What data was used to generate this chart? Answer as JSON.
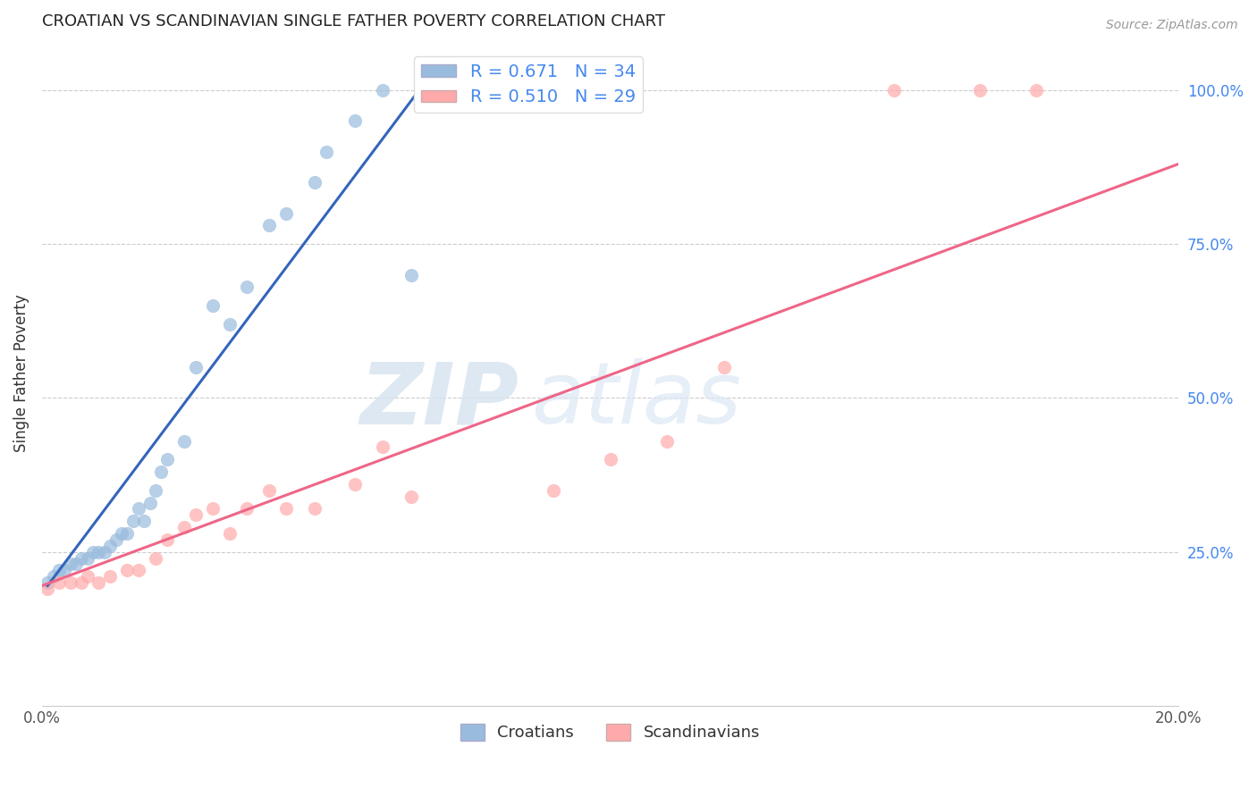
{
  "title": "CROATIAN VS SCANDINAVIAN SINGLE FATHER POVERTY CORRELATION CHART",
  "source": "Source: ZipAtlas.com",
  "ylabel": "Single Father Poverty",
  "xlim": [
    0.0,
    0.2
  ],
  "ylim": [
    0.0,
    1.08
  ],
  "xticks": [
    0.0,
    0.05,
    0.1,
    0.15,
    0.2
  ],
  "xtick_labels": [
    "0.0%",
    "",
    "",
    "",
    "20.0%"
  ],
  "ytick_labels_right": [
    "25.0%",
    "50.0%",
    "75.0%",
    "100.0%"
  ],
  "ytick_positions_right": [
    0.25,
    0.5,
    0.75,
    1.0
  ],
  "croatian_color": "#99BBDD",
  "scandinavian_color": "#FFAAAA",
  "line_croatian_color": "#3366BB",
  "line_scandinavian_color": "#EE6688",
  "croatian_R": 0.671,
  "croatian_N": 34,
  "scandinavian_R": 0.51,
  "scandinavian_N": 29,
  "watermark_zip": "ZIP",
  "watermark_atlas": "atlas",
  "legend_label_croatian": "Croatians",
  "legend_label_scandinavian": "Scandinavians",
  "croatian_line_x0": 0.001,
  "croatian_line_y0": 0.195,
  "croatian_line_x1": 0.068,
  "croatian_line_y1": 1.02,
  "scandinavian_line_x0": 0.0,
  "scandinavian_line_y0": 0.195,
  "scandinavian_line_x1": 0.2,
  "scandinavian_line_y1": 0.88,
  "croatian_x": [
    0.001,
    0.002,
    0.003,
    0.004,
    0.005,
    0.006,
    0.007,
    0.008,
    0.009,
    0.01,
    0.011,
    0.012,
    0.013,
    0.014,
    0.015,
    0.016,
    0.017,
    0.018,
    0.019,
    0.02,
    0.021,
    0.022,
    0.025,
    0.027,
    0.03,
    0.033,
    0.036,
    0.04,
    0.043,
    0.048,
    0.05,
    0.055,
    0.06,
    0.065
  ],
  "croatian_y": [
    0.2,
    0.21,
    0.22,
    0.22,
    0.23,
    0.23,
    0.24,
    0.24,
    0.25,
    0.25,
    0.25,
    0.26,
    0.27,
    0.28,
    0.28,
    0.3,
    0.32,
    0.3,
    0.33,
    0.35,
    0.38,
    0.4,
    0.43,
    0.55,
    0.65,
    0.62,
    0.68,
    0.78,
    0.8,
    0.85,
    0.9,
    0.95,
    1.0,
    0.7
  ],
  "scandinavian_x": [
    0.001,
    0.003,
    0.005,
    0.007,
    0.008,
    0.01,
    0.012,
    0.015,
    0.017,
    0.02,
    0.022,
    0.025,
    0.027,
    0.03,
    0.033,
    0.036,
    0.04,
    0.043,
    0.048,
    0.055,
    0.06,
    0.065,
    0.09,
    0.1,
    0.11,
    0.12,
    0.15,
    0.165,
    0.175
  ],
  "scandinavian_y": [
    0.19,
    0.2,
    0.2,
    0.2,
    0.21,
    0.2,
    0.21,
    0.22,
    0.22,
    0.24,
    0.27,
    0.29,
    0.31,
    0.32,
    0.28,
    0.32,
    0.35,
    0.32,
    0.32,
    0.36,
    0.42,
    0.34,
    0.35,
    0.4,
    0.43,
    0.55,
    1.0,
    1.0,
    1.0
  ]
}
